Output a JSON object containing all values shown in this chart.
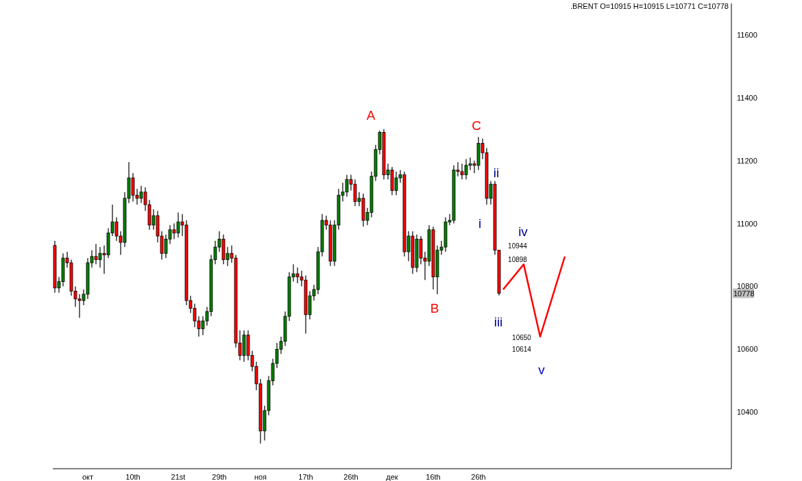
{
  "chart_data": {
    "type": "candlestick",
    "title": ".BRENT O=10915 H=10915 L=10771 C=10778",
    "categories": [
      null,
      null,
      null,
      null,
      null,
      null,
      null,
      null,
      "окт",
      null,
      null,
      null,
      null,
      null,
      null,
      null,
      null,
      null,
      null,
      "10th",
      null,
      null,
      null,
      null,
      null,
      null,
      null,
      null,
      null,
      null,
      "21st",
      null,
      null,
      null,
      null,
      null,
      null,
      null,
      null,
      null,
      "29th",
      null,
      null,
      null,
      null,
      null,
      null,
      null,
      null,
      null,
      "ноя",
      null,
      null,
      null,
      null,
      null,
      null,
      null,
      null,
      null,
      null,
      "17th",
      null,
      null,
      null,
      null,
      null,
      null,
      null,
      null,
      null,
      null,
      "26th",
      null,
      null,
      null,
      null,
      null,
      null,
      null,
      null,
      null,
      "дек",
      null,
      null,
      null,
      null,
      null,
      null,
      null,
      null,
      null,
      "16th",
      null,
      null,
      null,
      null,
      null,
      null,
      null,
      null,
      null,
      null,
      "26th",
      null,
      null,
      null,
      null,
      null,
      null,
      null,
      null,
      null,
      null,
      null,
      null,
      null,
      null,
      null,
      null,
      null,
      null,
      null,
      null,
      null,
      null,
      null,
      null,
      null,
      null,
      null,
      null,
      null,
      null,
      null,
      null,
      null,
      null,
      null,
      null,
      null,
      null,
      null,
      null,
      null,
      null,
      null,
      null,
      null,
      null,
      null,
      null,
      null,
      null,
      null,
      null,
      null,
      null,
      null,
      null,
      null,
      null,
      null,
      null,
      null
    ],
    "ohlc": [
      [
        10930,
        10945,
        10780,
        10795
      ],
      [
        10795,
        10830,
        10780,
        10815
      ],
      [
        10815,
        10905,
        10800,
        10890
      ],
      [
        10890,
        10910,
        10860,
        10875
      ],
      [
        10875,
        10885,
        10770,
        10785
      ],
      [
        10785,
        10800,
        10735,
        10760
      ],
      [
        10760,
        10775,
        10700,
        10755
      ],
      [
        10755,
        10790,
        10740,
        10775
      ],
      [
        10775,
        10890,
        10760,
        10875
      ],
      [
        10875,
        10915,
        10860,
        10895
      ],
      [
        10895,
        10935,
        10870,
        10885
      ],
      [
        10885,
        10925,
        10860,
        10905
      ],
      [
        10905,
        10930,
        10840,
        10900
      ],
      [
        10900,
        10985,
        10890,
        10970
      ],
      [
        10970,
        11060,
        10960,
        11005
      ],
      [
        11005,
        11020,
        10945,
        10960
      ],
      [
        10960,
        10975,
        10900,
        10940
      ],
      [
        10940,
        11100,
        10925,
        11080
      ],
      [
        11080,
        11195,
        11065,
        11145
      ],
      [
        11145,
        11160,
        11070,
        11090
      ],
      [
        11090,
        11110,
        11060,
        11080
      ],
      [
        11080,
        11120,
        11065,
        11100
      ],
      [
        11100,
        11115,
        11040,
        11060
      ],
      [
        11060,
        11075,
        10980,
        10995
      ],
      [
        10995,
        11045,
        10980,
        11025
      ],
      [
        11025,
        11040,
        10940,
        10960
      ],
      [
        10960,
        10975,
        10885,
        10905
      ],
      [
        10905,
        10965,
        10890,
        10950
      ],
      [
        10950,
        10995,
        10935,
        10980
      ],
      [
        10980,
        11000,
        10950,
        10970
      ],
      [
        10970,
        11035,
        10955,
        11005
      ],
      [
        11005,
        11030,
        10960,
        10995
      ],
      [
        10995,
        11010,
        10740,
        10755
      ],
      [
        10755,
        10770,
        10715,
        10730
      ],
      [
        10730,
        10745,
        10670,
        10690
      ],
      [
        10690,
        10705,
        10640,
        10665
      ],
      [
        10665,
        10705,
        10645,
        10690
      ],
      [
        10690,
        10735,
        10675,
        10720
      ],
      [
        10720,
        10900,
        10705,
        10885
      ],
      [
        10885,
        10945,
        10870,
        10925
      ],
      [
        10925,
        10975,
        10910,
        10950
      ],
      [
        10950,
        10965,
        10870,
        10885
      ],
      [
        10885,
        10925,
        10865,
        10905
      ],
      [
        10905,
        10930,
        10875,
        10890
      ],
      [
        10890,
        10900,
        10605,
        10620
      ],
      [
        10620,
        10660,
        10565,
        10580
      ],
      [
        10580,
        10660,
        10560,
        10645
      ],
      [
        10645,
        10660,
        10565,
        10580
      ],
      [
        10580,
        10595,
        10530,
        10545
      ],
      [
        10545,
        10560,
        10470,
        10490
      ],
      [
        10490,
        10505,
        10300,
        10340
      ],
      [
        10340,
        10420,
        10310,
        10405
      ],
      [
        10405,
        10515,
        10390,
        10500
      ],
      [
        10500,
        10570,
        10485,
        10555
      ],
      [
        10555,
        10620,
        10540,
        10600
      ],
      [
        10600,
        10640,
        10585,
        10625
      ],
      [
        10625,
        10720,
        10610,
        10705
      ],
      [
        10705,
        10845,
        10690,
        10830
      ],
      [
        10830,
        10870,
        10815,
        10840
      ],
      [
        10840,
        10860,
        10810,
        10830
      ],
      [
        10830,
        10850,
        10800,
        10820
      ],
      [
        10820,
        10835,
        10650,
        10710
      ],
      [
        10710,
        10785,
        10695,
        10770
      ],
      [
        10770,
        10805,
        10755,
        10790
      ],
      [
        10790,
        10925,
        10775,
        10910
      ],
      [
        10910,
        11030,
        10895,
        11010
      ],
      [
        11010,
        11025,
        10980,
        10995
      ],
      [
        10995,
        11010,
        10865,
        10880
      ],
      [
        10880,
        11010,
        10865,
        10995
      ],
      [
        10995,
        11110,
        10980,
        11090
      ],
      [
        11090,
        11130,
        11070,
        11100
      ],
      [
        11100,
        11155,
        11085,
        11140
      ],
      [
        11140,
        11155,
        11105,
        11125
      ],
      [
        11125,
        11140,
        11055,
        11070
      ],
      [
        11070,
        11100,
        11055,
        11080
      ],
      [
        11080,
        11095,
        10990,
        11010
      ],
      [
        11010,
        11050,
        10995,
        11035
      ],
      [
        11035,
        11165,
        11020,
        11150
      ],
      [
        11150,
        11250,
        11135,
        11235
      ],
      [
        11235,
        11295,
        11220,
        11290
      ],
      [
        11290,
        11300,
        11140,
        11155
      ],
      [
        11155,
        11190,
        11140,
        11170
      ],
      [
        11170,
        11180,
        11090,
        11105
      ],
      [
        11105,
        11165,
        11090,
        11145
      ],
      [
        11145,
        11170,
        11130,
        11155
      ],
      [
        11155,
        11165,
        10895,
        10910
      ],
      [
        10910,
        10975,
        10880,
        10960
      ],
      [
        10960,
        10975,
        10840,
        10860
      ],
      [
        10860,
        10965,
        10845,
        10950
      ],
      [
        10950,
        10960,
        10870,
        10890
      ],
      [
        10890,
        10910,
        10820,
        10880
      ],
      [
        10880,
        10995,
        10865,
        10980
      ],
      [
        10980,
        10990,
        10790,
        10830
      ],
      [
        10830,
        10930,
        10775,
        10915
      ],
      [
        10915,
        10945,
        10900,
        10925
      ],
      [
        10925,
        11020,
        10910,
        11005
      ],
      [
        11005,
        11030,
        10995,
        11010
      ],
      [
        11010,
        11185,
        11000,
        11170
      ],
      [
        11170,
        11195,
        11150,
        11165
      ],
      [
        11165,
        11190,
        11140,
        11155
      ],
      [
        11155,
        11205,
        11140,
        11185
      ],
      [
        11185,
        11210,
        11170,
        11190
      ],
      [
        11190,
        11200,
        11160,
        11185
      ],
      [
        11185,
        11275,
        11170,
        11255
      ],
      [
        11255,
        11270,
        11205,
        11225
      ],
      [
        11225,
        11240,
        11060,
        11080
      ],
      [
        11080,
        11135,
        11060,
        11125
      ],
      [
        11125,
        11135,
        10900,
        10915
      ],
      [
        10915,
        10915,
        10771,
        10778
      ],
      null,
      null,
      null,
      null,
      null,
      null,
      null,
      null,
      null,
      null,
      null,
      null,
      null,
      null,
      null,
      null,
      null,
      null,
      null,
      null,
      null,
      null,
      null,
      null,
      null,
      null,
      null,
      null,
      null,
      null,
      null,
      null,
      null,
      null,
      null,
      null,
      null,
      null,
      null,
      null,
      null,
      null,
      null,
      null,
      null,
      null,
      null,
      null,
      null,
      null,
      null,
      null,
      null,
      null,
      null,
      null
    ],
    "series": [
      {
        "type": "line",
        "color": "#ff0000",
        "values": [
          null,
          null,
          null,
          null,
          null,
          null,
          null,
          null,
          null,
          null,
          null,
          null,
          null,
          null,
          null,
          null,
          null,
          null,
          null,
          null,
          null,
          null,
          null,
          null,
          null,
          null,
          null,
          null,
          null,
          null,
          null,
          null,
          null,
          null,
          null,
          null,
          null,
          null,
          null,
          null,
          null,
          null,
          null,
          null,
          null,
          null,
          null,
          null,
          null,
          null,
          null,
          null,
          null,
          null,
          null,
          null,
          null,
          null,
          null,
          null,
          null,
          null,
          null,
          null,
          null,
          null,
          null,
          null,
          null,
          null,
          null,
          null,
          null,
          null,
          null,
          null,
          null,
          null,
          null,
          null,
          null,
          null,
          null,
          null,
          null,
          null,
          null,
          null,
          null,
          null,
          null,
          null,
          null,
          null,
          null,
          null,
          null,
          null,
          null,
          null,
          null,
          null,
          null,
          null,
          null,
          null,
          null,
          null,
          null,
          10790,
          null,
          null,
          null,
          null,
          10870,
          null,
          null,
          null,
          10640,
          null,
          null,
          null,
          null,
          null,
          10895,
          null,
          null,
          null,
          null,
          null,
          null,
          null,
          null,
          null,
          null,
          null,
          null,
          null,
          null,
          null,
          null,
          null,
          null,
          null,
          null,
          null,
          null,
          null,
          null,
          null,
          null,
          null,
          null,
          null,
          null,
          null,
          null,
          null,
          null,
          null,
          null,
          null,
          null,
          null,
          null
        ]
      }
    ],
    "ylim": [
      10220,
      11700
    ],
    "yticks": [
      10400,
      10600,
      10800,
      11000,
      11200,
      11400,
      11600
    ],
    "annotations": [
      "A",
      "B",
      "C",
      "i",
      "ii",
      "iii",
      "iv",
      "v",
      "10944",
      "10898",
      "10650",
      "10614",
      {
        "text": "10778",
        "y": 10778
      }
    ],
    "grid": false
  }
}
